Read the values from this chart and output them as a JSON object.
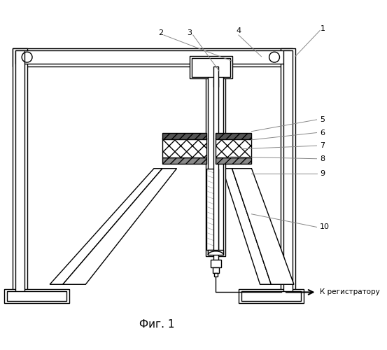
{
  "title": "Фиг. 1",
  "label_to_registrator": "К регистратору",
  "bg": "#ffffff",
  "lc": "#000000"
}
